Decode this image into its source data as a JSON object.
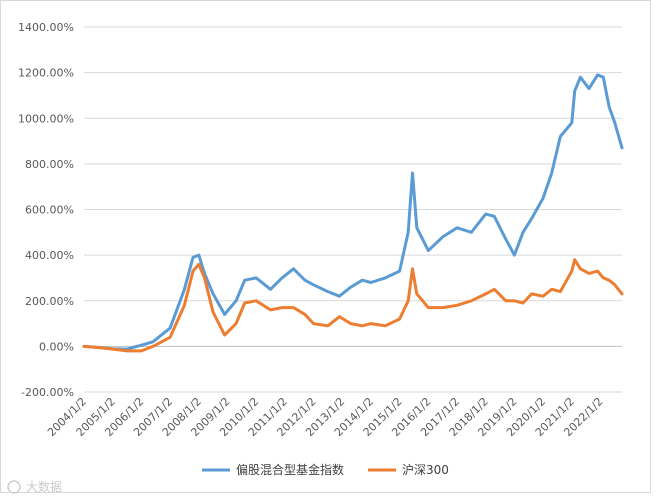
{
  "chart_data": {
    "type": "line",
    "title": "",
    "xlabel": "",
    "ylabel": "",
    "ylim": [
      -200,
      1400
    ],
    "y_ticks": [
      "-200.00%",
      "0.00%",
      "200.00%",
      "400.00%",
      "600.00%",
      "800.00%",
      "1000.00%",
      "1200.00%",
      "1400.00%"
    ],
    "y_tick_values": [
      -200,
      0,
      200,
      400,
      600,
      800,
      1000,
      1200,
      1400
    ],
    "x_ticks": [
      "2004/1/2",
      "2005/1/2",
      "2006/1/2",
      "2007/1/2",
      "2008/1/2",
      "2009/1/2",
      "2010/1/2",
      "2011/1/2",
      "2012/1/2",
      "2013/1/2",
      "2014/1/2",
      "2015/1/2",
      "2016/1/2",
      "2017/1/2",
      "2018/1/2",
      "2019/1/2",
      "2020/1/2",
      "2021/1/2",
      "2022/1/2"
    ],
    "xlim": [
      2004.0,
      2022.75
    ],
    "grid": true,
    "legend_position": "bottom",
    "series": [
      {
        "name": "偏股混合型基金指数",
        "color": "#5B9BD5",
        "x": [
          2004.0,
          2004.5,
          2005.0,
          2005.5,
          2006.0,
          2006.4,
          2007.0,
          2007.5,
          2007.8,
          2008.0,
          2008.2,
          2008.5,
          2008.9,
          2009.3,
          2009.6,
          2010.0,
          2010.5,
          2010.9,
          2011.3,
          2011.7,
          2012.0,
          2012.5,
          2012.9,
          2013.3,
          2013.7,
          2014.0,
          2014.5,
          2015.0,
          2015.3,
          2015.45,
          2015.6,
          2015.8,
          2016.0,
          2016.5,
          2017.0,
          2017.5,
          2018.0,
          2018.3,
          2018.7,
          2019.0,
          2019.3,
          2019.6,
          2020.0,
          2020.3,
          2020.6,
          2021.0,
          2021.1,
          2021.3,
          2021.6,
          2021.9,
          2022.1,
          2022.3,
          2022.5,
          2022.75
        ],
        "values": [
          0,
          -5,
          -10,
          -12,
          5,
          20,
          80,
          250,
          390,
          400,
          320,
          230,
          140,
          200,
          290,
          300,
          250,
          300,
          340,
          290,
          270,
          240,
          220,
          260,
          290,
          280,
          300,
          330,
          500,
          760,
          520,
          470,
          420,
          480,
          520,
          500,
          580,
          570,
          470,
          400,
          500,
          560,
          650,
          760,
          920,
          980,
          1120,
          1180,
          1130,
          1190,
          1180,
          1050,
          980,
          870
        ]
      },
      {
        "name": "沪深300",
        "color": "#ED7D31",
        "x": [
          2004.0,
          2004.5,
          2005.0,
          2005.5,
          2006.0,
          2006.4,
          2007.0,
          2007.5,
          2007.8,
          2008.0,
          2008.2,
          2008.5,
          2008.9,
          2009.3,
          2009.6,
          2010.0,
          2010.5,
          2010.9,
          2011.3,
          2011.7,
          2012.0,
          2012.5,
          2012.9,
          2013.3,
          2013.7,
          2014.0,
          2014.5,
          2015.0,
          2015.3,
          2015.45,
          2015.6,
          2015.8,
          2016.0,
          2016.5,
          2017.0,
          2017.5,
          2018.0,
          2018.3,
          2018.7,
          2019.0,
          2019.3,
          2019.6,
          2020.0,
          2020.3,
          2020.6,
          2021.0,
          2021.1,
          2021.3,
          2021.6,
          2021.9,
          2022.1,
          2022.3,
          2022.5,
          2022.75
        ],
        "values": [
          0,
          -5,
          -12,
          -20,
          -20,
          0,
          40,
          180,
          330,
          360,
          300,
          150,
          50,
          100,
          190,
          200,
          160,
          170,
          170,
          140,
          100,
          90,
          130,
          100,
          90,
          100,
          90,
          120,
          200,
          340,
          230,
          200,
          170,
          170,
          180,
          200,
          230,
          250,
          200,
          200,
          190,
          230,
          220,
          250,
          240,
          330,
          380,
          340,
          320,
          330,
          300,
          290,
          270,
          230
        ]
      }
    ]
  },
  "watermark": "大数据",
  "legend": {
    "fund_label": "偏股混合型基金指数",
    "csi_label": "沪深300"
  }
}
